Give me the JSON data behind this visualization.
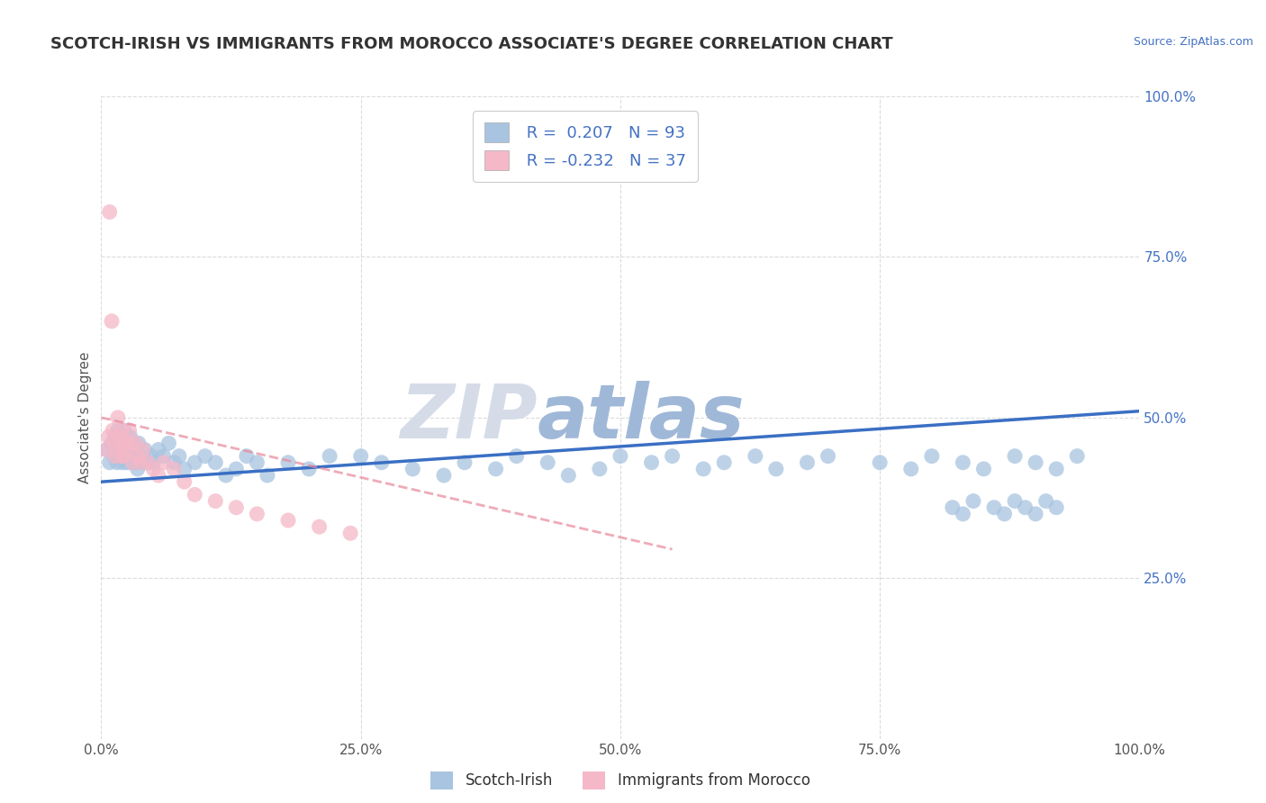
{
  "title": "SCOTCH-IRISH VS IMMIGRANTS FROM MOROCCO ASSOCIATE'S DEGREE CORRELATION CHART",
  "source_text": "Source: ZipAtlas.com",
  "ylabel": "Associate's Degree",
  "xlim": [
    0,
    1
  ],
  "ylim": [
    0,
    1
  ],
  "xticks": [
    0,
    0.25,
    0.5,
    0.75,
    1.0
  ],
  "yticks": [
    0.25,
    0.5,
    0.75,
    1.0
  ],
  "xticklabels": [
    "0.0%",
    "25.0%",
    "50.0%",
    "75.0%",
    "100.0%"
  ],
  "right_yticklabels": [
    "25.0%",
    "50.0%",
    "75.0%",
    "100.0%"
  ],
  "scotch_irish_color": "#a8c4e0",
  "morocco_color": "#f4b8c8",
  "scotch_irish_line_color": "#3a6fc4",
  "morocco_line_color": "#e8889a",
  "R_scotch": 0.207,
  "N_scotch": 93,
  "R_morocco": -0.232,
  "N_morocco": 37,
  "legend_label_scotch": "Scotch-Irish",
  "legend_label_morocco": "Immigrants from Morocco",
  "watermark": "ZIPatlas",
  "watermark_color_zip": "#d0d8e8",
  "watermark_color_atlas": "#7090c0",
  "background_color": "#ffffff",
  "grid_color": "#cccccc",
  "title_fontsize": 13,
  "axis_label_fontsize": 11,
  "tick_fontsize": 11,
  "scotch_irish_x": [
    0.005,
    0.008,
    0.01,
    0.012,
    0.013,
    0.015,
    0.015,
    0.016,
    0.017,
    0.018,
    0.019,
    0.02,
    0.02,
    0.021,
    0.022,
    0.022,
    0.023,
    0.024,
    0.025,
    0.025,
    0.026,
    0.027,
    0.028,
    0.028,
    0.029,
    0.03,
    0.031,
    0.032,
    0.033,
    0.034,
    0.035,
    0.036,
    0.038,
    0.04,
    0.042,
    0.045,
    0.048,
    0.05,
    0.055,
    0.06,
    0.065,
    0.07,
    0.075,
    0.08,
    0.09,
    0.1,
    0.11,
    0.12,
    0.13,
    0.14,
    0.15,
    0.16,
    0.18,
    0.2,
    0.22,
    0.25,
    0.27,
    0.3,
    0.33,
    0.35,
    0.38,
    0.4,
    0.43,
    0.45,
    0.48,
    0.5,
    0.53,
    0.55,
    0.58,
    0.6,
    0.63,
    0.65,
    0.68,
    0.7,
    0.75,
    0.78,
    0.8,
    0.83,
    0.85,
    0.88,
    0.9,
    0.92,
    0.94,
    0.82,
    0.83,
    0.84,
    0.86,
    0.87,
    0.88,
    0.89,
    0.9,
    0.91,
    0.92
  ],
  "scotch_irish_y": [
    0.45,
    0.43,
    0.46,
    0.44,
    0.47,
    0.45,
    0.43,
    0.48,
    0.46,
    0.44,
    0.47,
    0.45,
    0.43,
    0.46,
    0.48,
    0.44,
    0.46,
    0.43,
    0.47,
    0.45,
    0.44,
    0.46,
    0.43,
    0.47,
    0.45,
    0.44,
    0.46,
    0.43,
    0.45,
    0.44,
    0.42,
    0.46,
    0.44,
    0.43,
    0.45,
    0.43,
    0.44,
    0.43,
    0.45,
    0.44,
    0.46,
    0.43,
    0.44,
    0.42,
    0.43,
    0.44,
    0.43,
    0.41,
    0.42,
    0.44,
    0.43,
    0.41,
    0.43,
    0.42,
    0.44,
    0.44,
    0.43,
    0.42,
    0.41,
    0.43,
    0.42,
    0.44,
    0.43,
    0.41,
    0.42,
    0.44,
    0.43,
    0.44,
    0.42,
    0.43,
    0.44,
    0.42,
    0.43,
    0.44,
    0.43,
    0.42,
    0.44,
    0.43,
    0.42,
    0.44,
    0.43,
    0.42,
    0.44,
    0.36,
    0.35,
    0.37,
    0.36,
    0.35,
    0.37,
    0.36,
    0.35,
    0.37,
    0.36
  ],
  "morocco_x": [
    0.005,
    0.007,
    0.008,
    0.01,
    0.011,
    0.012,
    0.013,
    0.015,
    0.016,
    0.017,
    0.018,
    0.019,
    0.02,
    0.021,
    0.022,
    0.023,
    0.025,
    0.027,
    0.028,
    0.03,
    0.033,
    0.035,
    0.038,
    0.04,
    0.045,
    0.05,
    0.055,
    0.06,
    0.07,
    0.08,
    0.09,
    0.11,
    0.13,
    0.15,
    0.18,
    0.21,
    0.24
  ],
  "morocco_y": [
    0.45,
    0.47,
    0.82,
    0.65,
    0.48,
    0.46,
    0.44,
    0.47,
    0.5,
    0.47,
    0.46,
    0.44,
    0.48,
    0.46,
    0.44,
    0.46,
    0.45,
    0.48,
    0.46,
    0.43,
    0.46,
    0.44,
    0.43,
    0.45,
    0.43,
    0.42,
    0.41,
    0.43,
    0.42,
    0.4,
    0.38,
    0.37,
    0.36,
    0.35,
    0.34,
    0.33,
    0.32
  ],
  "blue_line_x0": 0.0,
  "blue_line_y0": 0.4,
  "blue_line_x1": 1.0,
  "blue_line_y1": 0.51,
  "pink_line_x0": 0.0,
  "pink_line_y0": 0.5,
  "pink_line_x1": 0.55,
  "pink_line_y1": 0.295
}
